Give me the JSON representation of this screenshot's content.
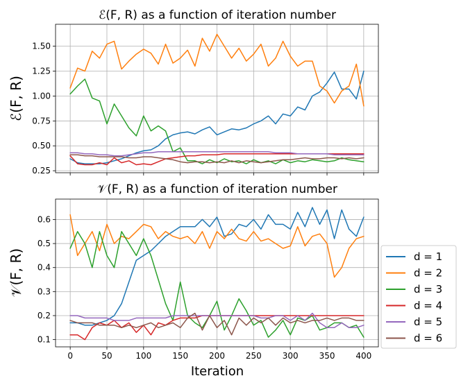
{
  "chart_data": [
    {
      "type": "line",
      "title": "ℰ(F, R) as a function of iteration number",
      "ylabel": "ℰ(F, R)",
      "xlabel": "",
      "xlim": [
        -20,
        420
      ],
      "ylim": [
        0.23,
        1.72
      ],
      "grid": true,
      "x_ticks": [
        0,
        50,
        100,
        150,
        200,
        250,
        300,
        350,
        400
      ],
      "y_ticks": [
        0.25,
        0.5,
        0.75,
        1.0,
        1.25,
        1.5
      ],
      "y_tick_labels": [
        "0.25",
        "0.50",
        "0.75",
        "1.00",
        "1.25",
        "1.50"
      ],
      "x": [
        0,
        10,
        20,
        30,
        40,
        50,
        60,
        70,
        80,
        90,
        100,
        110,
        120,
        130,
        140,
        150,
        160,
        170,
        180,
        190,
        200,
        210,
        220,
        230,
        240,
        250,
        260,
        270,
        280,
        290,
        300,
        310,
        320,
        330,
        340,
        350,
        360,
        370,
        380,
        390,
        400
      ],
      "series": [
        {
          "name": "d = 1",
          "color": "#1f77b4",
          "values": [
            0.37,
            0.33,
            0.32,
            0.32,
            0.32,
            0.33,
            0.35,
            0.37,
            0.4,
            0.43,
            0.45,
            0.46,
            0.5,
            0.57,
            0.61,
            0.63,
            0.64,
            0.62,
            0.66,
            0.69,
            0.61,
            0.64,
            0.67,
            0.66,
            0.68,
            0.72,
            0.75,
            0.8,
            0.72,
            0.82,
            0.8,
            0.89,
            0.86,
            1.0,
            1.04,
            1.13,
            1.24,
            1.07,
            1.07,
            0.97,
            1.25
          ]
        },
        {
          "name": "d = 2",
          "color": "#ff7f0e",
          "values": [
            1.08,
            1.28,
            1.25,
            1.45,
            1.38,
            1.52,
            1.55,
            1.27,
            1.35,
            1.42,
            1.47,
            1.43,
            1.32,
            1.52,
            1.33,
            1.38,
            1.46,
            1.3,
            1.58,
            1.45,
            1.62,
            1.5,
            1.38,
            1.48,
            1.35,
            1.42,
            1.52,
            1.3,
            1.38,
            1.55,
            1.4,
            1.3,
            1.35,
            1.35,
            1.1,
            1.05,
            0.93,
            1.05,
            1.1,
            1.32,
            0.9
          ]
        },
        {
          "name": "d = 3",
          "color": "#2ca02c",
          "values": [
            1.02,
            1.1,
            1.17,
            0.98,
            0.95,
            0.72,
            0.92,
            0.8,
            0.68,
            0.6,
            0.8,
            0.65,
            0.7,
            0.65,
            0.44,
            0.48,
            0.35,
            0.35,
            0.32,
            0.36,
            0.33,
            0.37,
            0.34,
            0.35,
            0.32,
            0.36,
            0.33,
            0.35,
            0.32,
            0.36,
            0.33,
            0.35,
            0.34,
            0.36,
            0.35,
            0.34,
            0.35,
            0.38,
            0.36,
            0.35,
            0.34
          ]
        },
        {
          "name": "d = 4",
          "color": "#d62728",
          "values": [
            0.4,
            0.32,
            0.31,
            0.31,
            0.33,
            0.31,
            0.38,
            0.33,
            0.35,
            0.31,
            0.32,
            0.31,
            0.34,
            0.37,
            0.38,
            0.39,
            0.4,
            0.4,
            0.41,
            0.41,
            0.41,
            0.42,
            0.42,
            0.42,
            0.42,
            0.42,
            0.42,
            0.42,
            0.42,
            0.42,
            0.42,
            0.42,
            0.42,
            0.42,
            0.42,
            0.42,
            0.42,
            0.42,
            0.42,
            0.42,
            0.42
          ]
        },
        {
          "name": "d = 5",
          "color": "#9467bd",
          "values": [
            0.43,
            0.43,
            0.42,
            0.42,
            0.41,
            0.41,
            0.4,
            0.4,
            0.41,
            0.42,
            0.43,
            0.43,
            0.44,
            0.44,
            0.44,
            0.44,
            0.44,
            0.44,
            0.44,
            0.44,
            0.44,
            0.44,
            0.44,
            0.44,
            0.44,
            0.44,
            0.44,
            0.44,
            0.43,
            0.43,
            0.43,
            0.42,
            0.42,
            0.42,
            0.42,
            0.42,
            0.41,
            0.41,
            0.41,
            0.41,
            0.41
          ]
        },
        {
          "name": "d = 6",
          "color": "#8c564b",
          "values": [
            0.41,
            0.41,
            0.4,
            0.4,
            0.39,
            0.39,
            0.39,
            0.39,
            0.38,
            0.38,
            0.39,
            0.39,
            0.38,
            0.37,
            0.36,
            0.34,
            0.33,
            0.34,
            0.34,
            0.33,
            0.34,
            0.33,
            0.35,
            0.33,
            0.35,
            0.34,
            0.33,
            0.34,
            0.35,
            0.36,
            0.36,
            0.37,
            0.38,
            0.37,
            0.37,
            0.38,
            0.38,
            0.37,
            0.38,
            0.37,
            0.38
          ]
        }
      ]
    },
    {
      "type": "line",
      "title": "𝒱(F, R) as a function of iteration number",
      "ylabel": "𝒱(F, R)",
      "xlabel": "Iteration",
      "xlim": [
        -20,
        420
      ],
      "ylim": [
        0.07,
        0.685
      ],
      "grid": true,
      "legend_position": "right, outside the plot area",
      "x_ticks": [
        0,
        50,
        100,
        150,
        200,
        250,
        300,
        350,
        400
      ],
      "x_tick_labels": [
        "0",
        "50",
        "100",
        "150",
        "200",
        "250",
        "300",
        "350",
        "400"
      ],
      "y_ticks": [
        0.1,
        0.2,
        0.3,
        0.4,
        0.5,
        0.6
      ],
      "y_tick_labels": [
        "0.1",
        "0.2",
        "0.3",
        "0.4",
        "0.5",
        "0.6"
      ],
      "x": [
        0,
        10,
        20,
        30,
        40,
        50,
        60,
        70,
        80,
        90,
        100,
        110,
        120,
        130,
        140,
        150,
        160,
        170,
        180,
        190,
        200,
        210,
        220,
        230,
        240,
        250,
        260,
        270,
        280,
        290,
        300,
        310,
        320,
        330,
        340,
        350,
        360,
        370,
        380,
        390,
        400
      ],
      "series": [
        {
          "name": "d = 1",
          "color": "#1f77b4",
          "values": [
            0.17,
            0.17,
            0.16,
            0.16,
            0.17,
            0.18,
            0.2,
            0.25,
            0.34,
            0.43,
            0.45,
            0.47,
            0.5,
            0.53,
            0.55,
            0.57,
            0.57,
            0.57,
            0.6,
            0.57,
            0.61,
            0.53,
            0.54,
            0.58,
            0.57,
            0.6,
            0.56,
            0.62,
            0.58,
            0.58,
            0.56,
            0.63,
            0.57,
            0.65,
            0.58,
            0.64,
            0.52,
            0.64,
            0.56,
            0.53,
            0.61
          ]
        },
        {
          "name": "d = 2",
          "color": "#ff7f0e",
          "values": [
            0.62,
            0.45,
            0.5,
            0.55,
            0.47,
            0.58,
            0.5,
            0.53,
            0.52,
            0.55,
            0.58,
            0.57,
            0.52,
            0.55,
            0.53,
            0.52,
            0.53,
            0.5,
            0.55,
            0.48,
            0.55,
            0.52,
            0.56,
            0.52,
            0.51,
            0.55,
            0.51,
            0.52,
            0.5,
            0.48,
            0.49,
            0.57,
            0.49,
            0.53,
            0.54,
            0.5,
            0.36,
            0.4,
            0.48,
            0.52,
            0.53
          ]
        },
        {
          "name": "d = 3",
          "color": "#2ca02c",
          "values": [
            0.48,
            0.55,
            0.5,
            0.4,
            0.55,
            0.45,
            0.4,
            0.55,
            0.5,
            0.45,
            0.52,
            0.45,
            0.35,
            0.25,
            0.18,
            0.34,
            0.2,
            0.17,
            0.15,
            0.2,
            0.26,
            0.14,
            0.2,
            0.27,
            0.22,
            0.16,
            0.18,
            0.11,
            0.14,
            0.18,
            0.12,
            0.19,
            0.18,
            0.2,
            0.14,
            0.15,
            0.17,
            0.17,
            0.15,
            0.16,
            0.11
          ]
        },
        {
          "name": "d = 4",
          "color": "#d62728",
          "values": [
            0.12,
            0.12,
            0.1,
            0.15,
            0.17,
            0.16,
            0.18,
            0.15,
            0.17,
            0.13,
            0.16,
            0.12,
            0.17,
            0.16,
            0.18,
            0.19,
            0.19,
            0.19,
            0.2,
            0.2,
            0.2,
            0.2,
            0.2,
            0.2,
            0.2,
            0.2,
            0.2,
            0.2,
            0.2,
            0.2,
            0.2,
            0.2,
            0.2,
            0.2,
            0.2,
            0.2,
            0.2,
            0.2,
            0.2,
            0.2,
            0.2
          ]
        },
        {
          "name": "d = 5",
          "color": "#9467bd",
          "values": [
            0.2,
            0.2,
            0.19,
            0.19,
            0.19,
            0.19,
            0.18,
            0.18,
            0.18,
            0.19,
            0.19,
            0.19,
            0.19,
            0.19,
            0.2,
            0.2,
            0.2,
            0.2,
            0.2,
            0.2,
            0.2,
            0.2,
            0.2,
            0.2,
            0.2,
            0.2,
            0.19,
            0.19,
            0.2,
            0.2,
            0.18,
            0.2,
            0.18,
            0.21,
            0.17,
            0.15,
            0.15,
            0.17,
            0.15,
            0.15,
            0.16
          ]
        },
        {
          "name": "d = 6",
          "color": "#8c564b",
          "values": [
            0.18,
            0.17,
            0.17,
            0.17,
            0.16,
            0.16,
            0.16,
            0.15,
            0.16,
            0.15,
            0.16,
            0.17,
            0.15,
            0.16,
            0.17,
            0.15,
            0.19,
            0.21,
            0.14,
            0.2,
            0.15,
            0.18,
            0.12,
            0.19,
            0.16,
            0.19,
            0.17,
            0.19,
            0.16,
            0.19,
            0.17,
            0.18,
            0.17,
            0.18,
            0.18,
            0.19,
            0.18,
            0.19,
            0.19,
            0.18,
            0.18
          ]
        }
      ]
    }
  ]
}
